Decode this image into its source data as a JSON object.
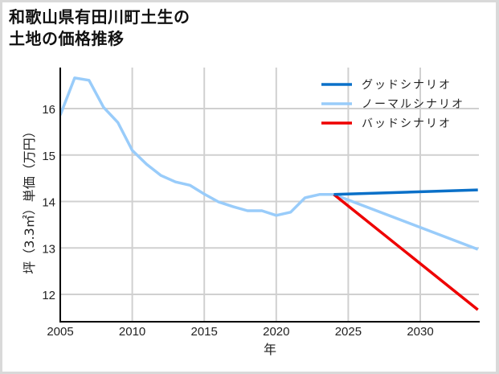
{
  "title": {
    "line1": "和歌山県有田川町土生の",
    "line2": "土地の価格推移"
  },
  "chart_data": {
    "type": "line",
    "title": "和歌山県有田川町土生の土地の価格推移",
    "xlabel": "年",
    "ylabel": "坪（3.3㎡）単価（万円）",
    "xlim": [
      2005,
      2034
    ],
    "ylim": [
      11.4,
      17.0
    ],
    "xticks": [
      2005,
      2010,
      2015,
      2020,
      2025,
      2030
    ],
    "yticks": [
      12,
      13,
      14,
      15,
      16
    ],
    "grid": true,
    "legend_position": "upper right",
    "series": [
      {
        "name": "グッドシナリオ",
        "color": "#0a70c8",
        "x": [
          2024,
          2034
        ],
        "values": [
          14.15,
          14.25
        ]
      },
      {
        "name": "ノーマルシナリオ",
        "color": "#99ccfa",
        "x": [
          2005,
          2006,
          2007,
          2008,
          2009,
          2010,
          2011,
          2012,
          2013,
          2014,
          2015,
          2016,
          2017,
          2018,
          2019,
          2020,
          2021,
          2022,
          2023,
          2024,
          2034
        ],
        "values": [
          15.86,
          16.66,
          16.61,
          16.03,
          15.7,
          15.1,
          14.8,
          14.56,
          14.42,
          14.35,
          14.16,
          13.99,
          13.89,
          13.8,
          13.8,
          13.7,
          13.77,
          14.08,
          14.15,
          14.15,
          12.97
        ]
      },
      {
        "name": "バッドシナリオ",
        "color": "#ee0000",
        "x": [
          2024,
          2034
        ],
        "values": [
          14.15,
          11.67
        ]
      }
    ]
  },
  "axis": {
    "x_label": "年",
    "y_label": "坪（3.3㎡）単価（万円）",
    "x_ticks": [
      "2005",
      "2010",
      "2015",
      "2020",
      "2025",
      "2030"
    ],
    "y_ticks": [
      "16",
      "15",
      "14",
      "13",
      "12"
    ]
  },
  "legend": [
    {
      "label": "グッドシナリオ",
      "color": "#0a70c8"
    },
    {
      "label": "ノーマルシナリオ",
      "color": "#99ccfa"
    },
    {
      "label": "バッドシナリオ",
      "color": "#ee0000"
    }
  ]
}
